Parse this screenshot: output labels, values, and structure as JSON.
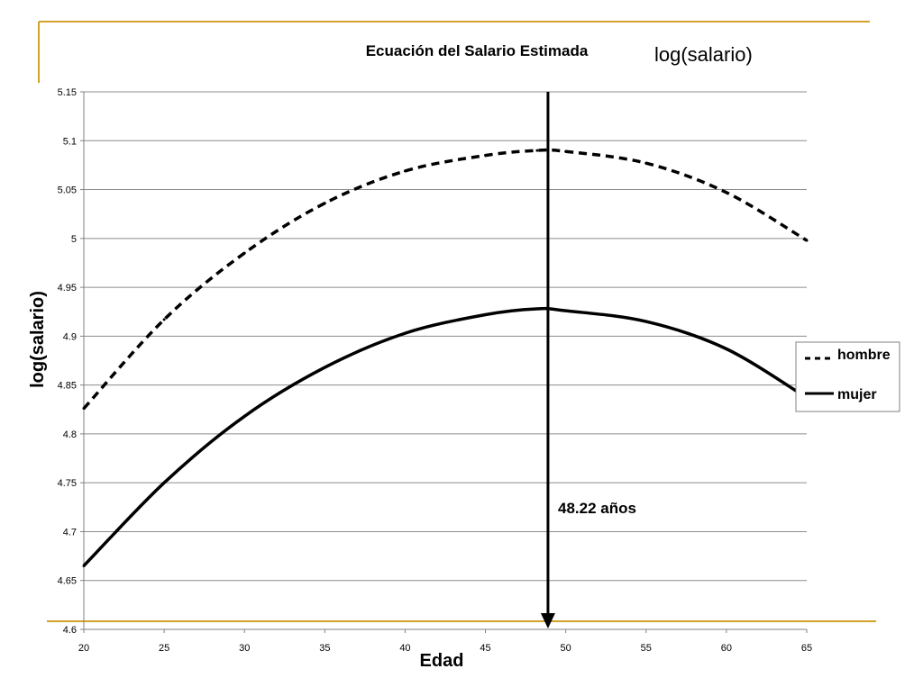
{
  "slide": {
    "title": "log(salario)",
    "accent_color": "#D4A12A"
  },
  "chart_data": {
    "type": "line",
    "title": "Ecuación del Salario Estimada",
    "xlabel": "Edad",
    "ylabel": "log(salario)",
    "xlim": [
      20,
      65
    ],
    "ylim": [
      4.6,
      5.15
    ],
    "x_ticks": [
      "20",
      "25",
      "30",
      "35",
      "40",
      "45",
      "50",
      "55",
      "60",
      "65"
    ],
    "y_ticks": [
      "4.6",
      "4.65",
      "4.7",
      "4.75",
      "4.8",
      "4.85",
      "4.9",
      "4.95",
      "5",
      "5.05",
      "5.1",
      "5.15"
    ],
    "grid": "horizontal",
    "legend_position": "right",
    "x": [
      20,
      25,
      30,
      35,
      40,
      45,
      48.22,
      50,
      55,
      60,
      65
    ],
    "series": [
      {
        "name": "hombre",
        "style": "dashed",
        "color": "#000000",
        "values": [
          4.826,
          4.917,
          4.985,
          5.036,
          5.069,
          5.085,
          5.09,
          5.089,
          5.077,
          5.047,
          4.998
        ]
      },
      {
        "name": "mujer",
        "style": "solid",
        "color": "#000000",
        "values": [
          4.665,
          4.75,
          4.818,
          4.868,
          4.903,
          4.922,
          4.928,
          4.926,
          4.915,
          4.887,
          4.837
        ]
      }
    ],
    "annotation": {
      "text": "48.22 años",
      "x": 48.22
    }
  }
}
